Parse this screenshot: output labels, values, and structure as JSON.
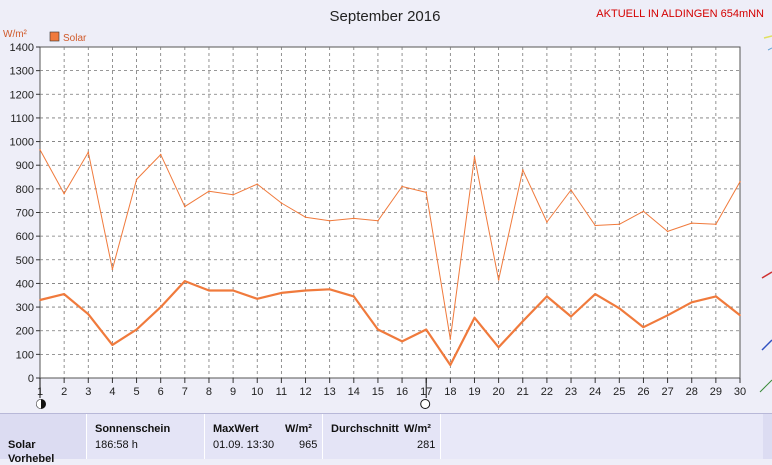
{
  "header": {
    "title": "September 2016",
    "brand": "AKTUELL IN ALDINGEN 654mNN"
  },
  "chart_data": {
    "type": "line",
    "title": "September 2016",
    "ylabel": "W/m²",
    "xlabel": "",
    "ylim": [
      0,
      1400
    ],
    "yticks": [
      0,
      100,
      200,
      300,
      400,
      500,
      600,
      700,
      800,
      900,
      1000,
      1100,
      1200,
      1300,
      1400
    ],
    "x": [
      1,
      2,
      3,
      4,
      5,
      6,
      7,
      8,
      9,
      10,
      11,
      12,
      13,
      14,
      15,
      16,
      17,
      18,
      19,
      20,
      21,
      22,
      23,
      24,
      25,
      26,
      27,
      28,
      29,
      30
    ],
    "xlim": [
      1,
      30
    ],
    "grid": true,
    "legend": {
      "position": "top-left"
    },
    "series": [
      {
        "name": "Solar",
        "role": "max",
        "color": "#f07a3c",
        "values": [
          965,
          780,
          955,
          460,
          840,
          945,
          725,
          790,
          775,
          820,
          740,
          680,
          665,
          675,
          665,
          810,
          785,
          165,
          935,
          415,
          880,
          660,
          795,
          645,
          650,
          705,
          620,
          655,
          650,
          830
        ]
      },
      {
        "name": "",
        "role": "mean",
        "color": "#f07a3c",
        "values": [
          330,
          355,
          270,
          140,
          205,
          300,
          410,
          370,
          370,
          335,
          360,
          370,
          375,
          345,
          205,
          155,
          205,
          55,
          255,
          130,
          240,
          345,
          260,
          355,
          295,
          215,
          265,
          320,
          345,
          265
        ]
      }
    ],
    "markers": [
      {
        "day": 1,
        "symbol": "full-moon"
      },
      {
        "day": 17,
        "symbol": "new-moon"
      }
    ]
  },
  "legend": {
    "label": "Solar"
  },
  "stats": {
    "row_label": "Solar",
    "row_label2": "Vorhebel",
    "sunshine_header": "Sonnenschein",
    "sunshine_value": "186:58 h",
    "max_header": "MaxWert",
    "max_unit": "W/m²",
    "max_date": "01.09.  13:30",
    "max_value": "965",
    "avg_header": "Durchschnitt",
    "avg_unit": "W/m²",
    "avg_value": "281"
  },
  "colors": {
    "series": "#f07a3c",
    "background": "#eeeef8",
    "plot": "#ffffff",
    "brand": "#d40000"
  }
}
